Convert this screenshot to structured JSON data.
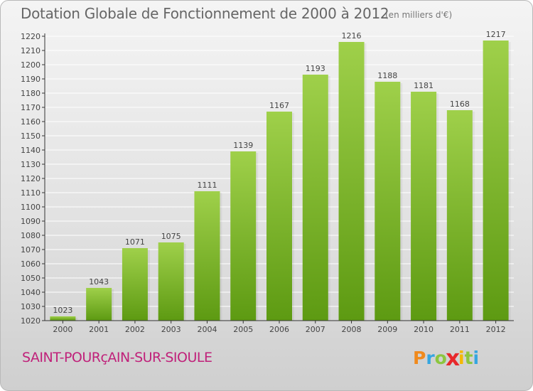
{
  "header": {
    "title": "Dotation Globale de Fonctionnement de 2000 à 2012",
    "unit": "(en milliers d'€)"
  },
  "footer": {
    "commune": "SAINT-POURçAIN-SUR-SIOULE",
    "logo_letters": [
      "P",
      "r",
      "o",
      "x",
      "i",
      "t",
      "i"
    ],
    "logo_colors": [
      "#f08a1c",
      "#35a6e0",
      "#8cc63f",
      "#e8282b",
      "#f5b800",
      "#8cc63f",
      "#35a6e0"
    ]
  },
  "chart_data": {
    "type": "bar",
    "categories": [
      "2000",
      "2001",
      "2002",
      "2003",
      "2004",
      "2005",
      "2006",
      "2007",
      "2008",
      "2009",
      "2010",
      "2011",
      "2012"
    ],
    "values": [
      1023,
      1043,
      1071,
      1075,
      1111,
      1139,
      1167,
      1193,
      1216,
      1188,
      1181,
      1168,
      1217
    ],
    "ylim": [
      1020,
      1220
    ],
    "yticks": [
      1020,
      1030,
      1040,
      1050,
      1060,
      1070,
      1080,
      1090,
      1100,
      1110,
      1120,
      1130,
      1140,
      1150,
      1160,
      1170,
      1180,
      1190,
      1200,
      1210,
      1220
    ],
    "grid": true,
    "colors": {
      "bar_top": "#9fd04a",
      "bar_bottom": "#5d9a12",
      "grid": "#ffffff",
      "axis": "#333333"
    }
  }
}
